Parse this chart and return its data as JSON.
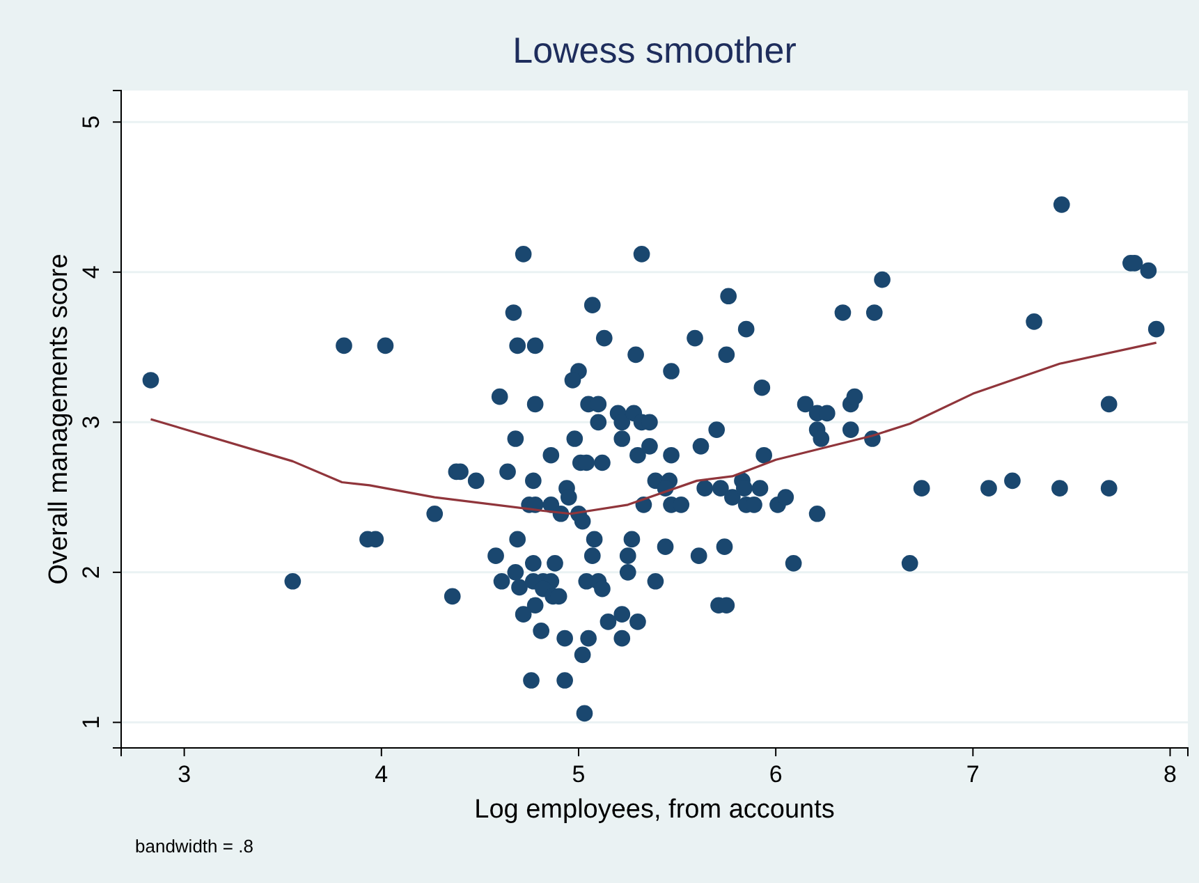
{
  "chart_data": {
    "type": "scatter",
    "title": "Lowess smoother",
    "xlabel": "Log employees, from accounts",
    "ylabel": "Overall managements score",
    "annotations": [
      "bandwidth = .8"
    ],
    "xlim": [
      2.68,
      8.09
    ],
    "ylim": [
      0.83,
      5.21
    ],
    "xticks": [
      3,
      4,
      5,
      6,
      7,
      8
    ],
    "yticks": [
      1,
      2,
      3,
      4,
      5
    ],
    "grid": "y",
    "series": [
      {
        "marker": "circle",
        "color": "#1a476f",
        "x": [
          2.83,
          3.55,
          3.81,
          4.02,
          3.93,
          3.97,
          4.27,
          4.38,
          4.48,
          4.36,
          4.72,
          5.32,
          5.76,
          4.67,
          5.07,
          4.69,
          4.78,
          5.13,
          5.29,
          5.59,
          5.75,
          5.0,
          4.97,
          5.47,
          4.6,
          4.78,
          5.05,
          5.1,
          5.1,
          5.2,
          5.22,
          5.28,
          5.32,
          5.36,
          4.68,
          4.98,
          5.22,
          4.86,
          5.3,
          5.36,
          5.47,
          5.62,
          5.7,
          5.01,
          5.04,
          5.12,
          4.4,
          4.64,
          4.77,
          4.94,
          4.95,
          5.39,
          5.46,
          5.44,
          5.64,
          5.72,
          5.78,
          4.75,
          4.78,
          4.86,
          4.91,
          5.0,
          5.02,
          5.33,
          5.47,
          5.52,
          4.69,
          5.08,
          5.27,
          5.44,
          5.74,
          4.58,
          5.07,
          5.25,
          5.61,
          4.77,
          4.88,
          4.68,
          5.25,
          4.61,
          4.7,
          4.77,
          4.82,
          4.86,
          5.04,
          5.1,
          5.12,
          5.39,
          4.82,
          4.87,
          4.9,
          4.78,
          4.72,
          5.22,
          5.71,
          5.75,
          4.81,
          5.15,
          5.3,
          4.93,
          5.05,
          5.22,
          5.02,
          4.76,
          4.93,
          5.03,
          5.85,
          5.93,
          5.94,
          5.83,
          5.84,
          5.85,
          5.89,
          5.92,
          6.01,
          6.05,
          6.21,
          6.15,
          6.21,
          6.26,
          6.21,
          6.23,
          6.38,
          6.4,
          6.38,
          6.49,
          6.34,
          6.5,
          6.54,
          6.09,
          6.68,
          6.74,
          7.08,
          7.2,
          7.44,
          7.69,
          7.69,
          7.31,
          7.45,
          7.8,
          7.82,
          7.89,
          7.93
        ],
        "values": [
          3.28,
          1.94,
          3.51,
          3.51,
          2.22,
          2.22,
          2.39,
          2.67,
          2.61,
          1.84,
          4.12,
          4.12,
          3.84,
          3.73,
          3.78,
          3.51,
          3.51,
          3.56,
          3.45,
          3.56,
          3.45,
          3.34,
          3.28,
          3.34,
          3.17,
          3.12,
          3.12,
          3.12,
          3.0,
          3.06,
          3.0,
          3.06,
          3.0,
          3.0,
          2.89,
          2.89,
          2.89,
          2.78,
          2.78,
          2.84,
          2.78,
          2.84,
          2.95,
          2.73,
          2.73,
          2.73,
          2.67,
          2.67,
          2.61,
          2.56,
          2.5,
          2.61,
          2.61,
          2.56,
          2.56,
          2.56,
          2.5,
          2.45,
          2.45,
          2.45,
          2.39,
          2.39,
          2.34,
          2.45,
          2.45,
          2.45,
          2.22,
          2.22,
          2.22,
          2.17,
          2.17,
          2.11,
          2.11,
          2.11,
          2.11,
          2.06,
          2.06,
          2.0,
          2.0,
          1.94,
          1.9,
          1.94,
          1.94,
          1.94,
          1.94,
          1.94,
          1.89,
          1.94,
          1.89,
          1.84,
          1.84,
          1.78,
          1.72,
          1.72,
          1.78,
          1.78,
          1.61,
          1.67,
          1.67,
          1.56,
          1.56,
          1.56,
          1.45,
          1.28,
          1.28,
          1.06,
          3.62,
          3.23,
          2.78,
          2.61,
          2.56,
          2.45,
          2.45,
          2.56,
          2.45,
          2.5,
          2.39,
          3.12,
          3.06,
          3.06,
          2.95,
          2.89,
          3.12,
          3.17,
          2.95,
          2.89,
          3.73,
          3.73,
          3.95,
          2.06,
          2.06,
          2.56,
          2.56,
          2.61,
          2.56,
          2.56,
          3.12,
          3.67,
          4.45,
          4.06,
          4.06,
          4.01,
          3.62
        ]
      },
      {
        "type": "line",
        "color": "#90353b",
        "line_style": "solid",
        "x": [
          2.83,
          3.55,
          3.8,
          3.94,
          4.27,
          4.82,
          4.96,
          5.25,
          5.6,
          5.78,
          6.0,
          6.49,
          6.68,
          7.0,
          7.44,
          7.93
        ],
        "values": [
          3.02,
          2.74,
          2.6,
          2.58,
          2.5,
          2.41,
          2.39,
          2.45,
          2.61,
          2.64,
          2.75,
          2.91,
          2.99,
          3.19,
          3.39,
          3.53
        ]
      }
    ]
  }
}
